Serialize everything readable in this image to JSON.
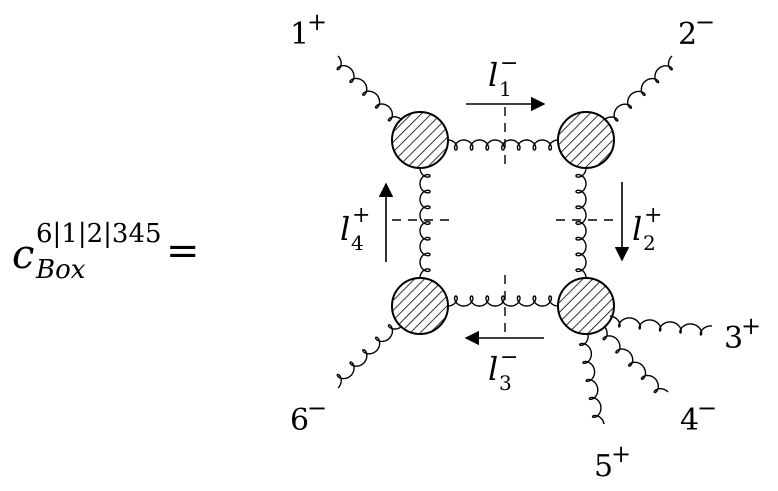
{
  "lhs": {
    "symbol": "c",
    "superscript": "6|1|2|345",
    "subscript": "Box",
    "equals": "="
  },
  "external_legs": [
    {
      "index": "1",
      "helicity": "+"
    },
    {
      "index": "2",
      "helicity": "−"
    },
    {
      "index": "3",
      "helicity": "+"
    },
    {
      "index": "4",
      "helicity": "−"
    },
    {
      "index": "5",
      "helicity": "+"
    },
    {
      "index": "6",
      "helicity": "−"
    }
  ],
  "loop_momenta": [
    {
      "symbol": "l",
      "index": "1",
      "helicity": "−"
    },
    {
      "symbol": "l",
      "index": "2",
      "helicity": "+"
    },
    {
      "symbol": "l",
      "index": "3",
      "helicity": "−"
    },
    {
      "symbol": "l",
      "index": "4",
      "helicity": "+"
    }
  ]
}
